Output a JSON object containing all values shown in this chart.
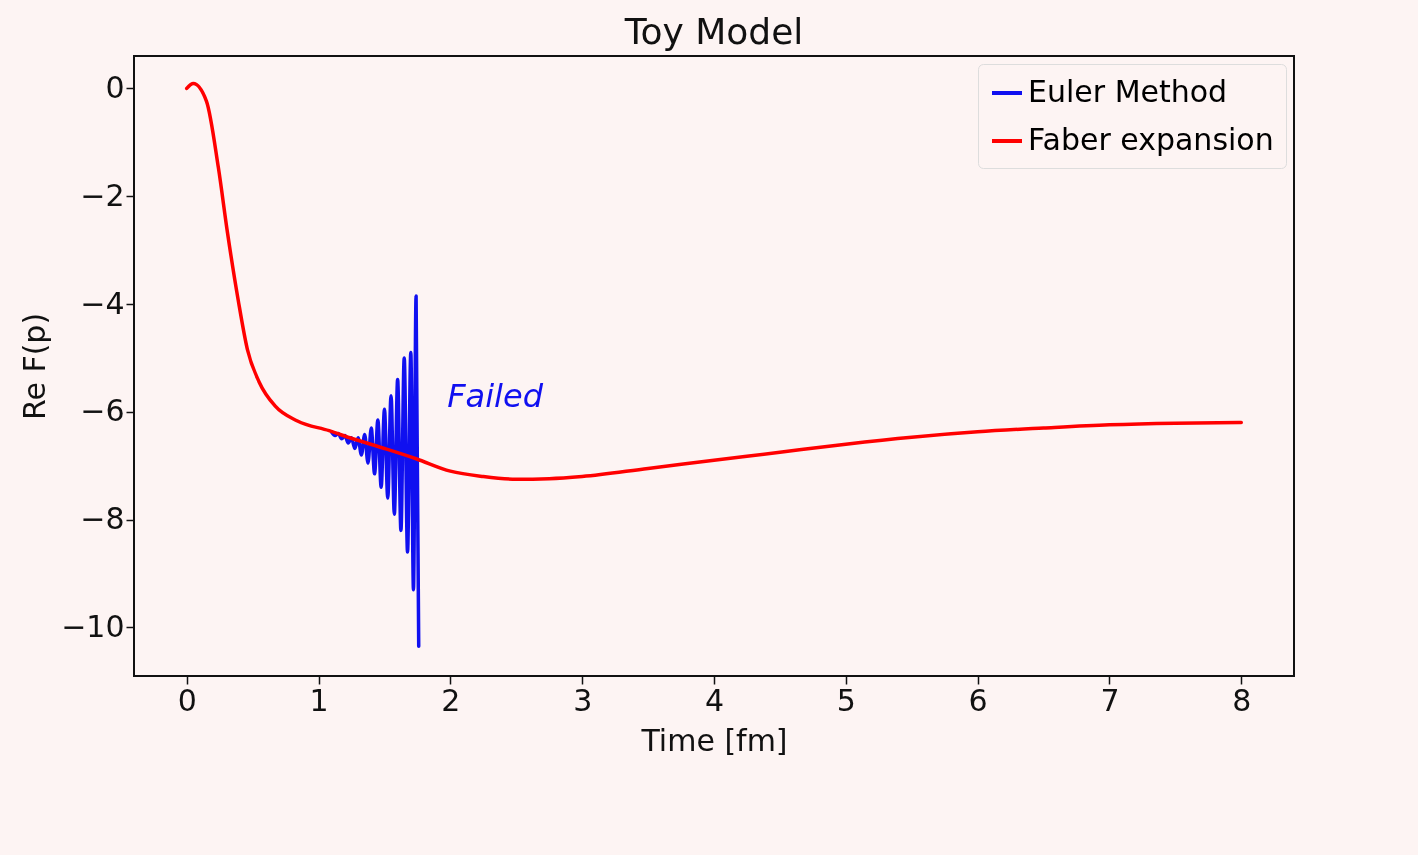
{
  "chart_data": {
    "type": "line",
    "title": "Toy Model",
    "xlabel": "Time [fm]",
    "ylabel": "Re F(p)",
    "xlim": [
      -0.4,
      8.4
    ],
    "ylim": [
      -10.9,
      0.6
    ],
    "xticks": [
      0,
      1,
      2,
      3,
      4,
      5,
      6,
      7,
      8
    ],
    "yticks": [
      0,
      -2,
      -4,
      -6,
      -8,
      -10
    ],
    "grid": false,
    "legend": "top right",
    "marker": "none",
    "line_style": "solid",
    "annotations": [
      "Failed"
    ],
    "series": [
      {
        "name": "Euler Method",
        "color": "#1010f0",
        "x": [
          1.1,
          1.125,
          1.15,
          1.175,
          1.2,
          1.225,
          1.25,
          1.275,
          1.3,
          1.325,
          1.35,
          1.375,
          1.4,
          1.425,
          1.45,
          1.475,
          1.5,
          1.525,
          1.55,
          1.575,
          1.6,
          1.625,
          1.65,
          1.675,
          1.7,
          1.72,
          1.74,
          1.76
        ],
        "values": [
          -6.38,
          -6.44,
          -6.4,
          -6.5,
          -6.44,
          -6.58,
          -6.48,
          -6.68,
          -6.48,
          -6.8,
          -6.42,
          -6.95,
          -6.3,
          -7.15,
          -6.15,
          -7.4,
          -5.95,
          -7.6,
          -5.7,
          -7.9,
          -5.4,
          -8.2,
          -5.0,
          -8.6,
          -4.9,
          -9.3,
          -3.85,
          -10.35
        ]
      },
      {
        "name": "Faber expansion",
        "color": "#ff0000",
        "x": [
          0,
          0.05,
          0.15,
          0.24,
          0.31,
          0.39,
          0.46,
          0.55,
          0.67,
          0.84,
          1.08,
          1.26,
          1.5,
          1.74,
          2,
          2.25,
          2.5,
          2.75,
          3,
          3.5,
          4,
          4.5,
          5,
          5.5,
          6,
          6.5,
          7,
          7.5,
          8
        ],
        "values": [
          0,
          0.09,
          -0.24,
          -1.47,
          -2.69,
          -3.92,
          -4.84,
          -5.45,
          -5.89,
          -6.17,
          -6.35,
          -6.5,
          -6.68,
          -6.87,
          -7.1,
          -7.2,
          -7.25,
          -7.24,
          -7.2,
          -7.05,
          -6.9,
          -6.75,
          -6.6,
          -6.47,
          -6.37,
          -6.3,
          -6.24,
          -6.21,
          -6.2
        ]
      }
    ]
  }
}
